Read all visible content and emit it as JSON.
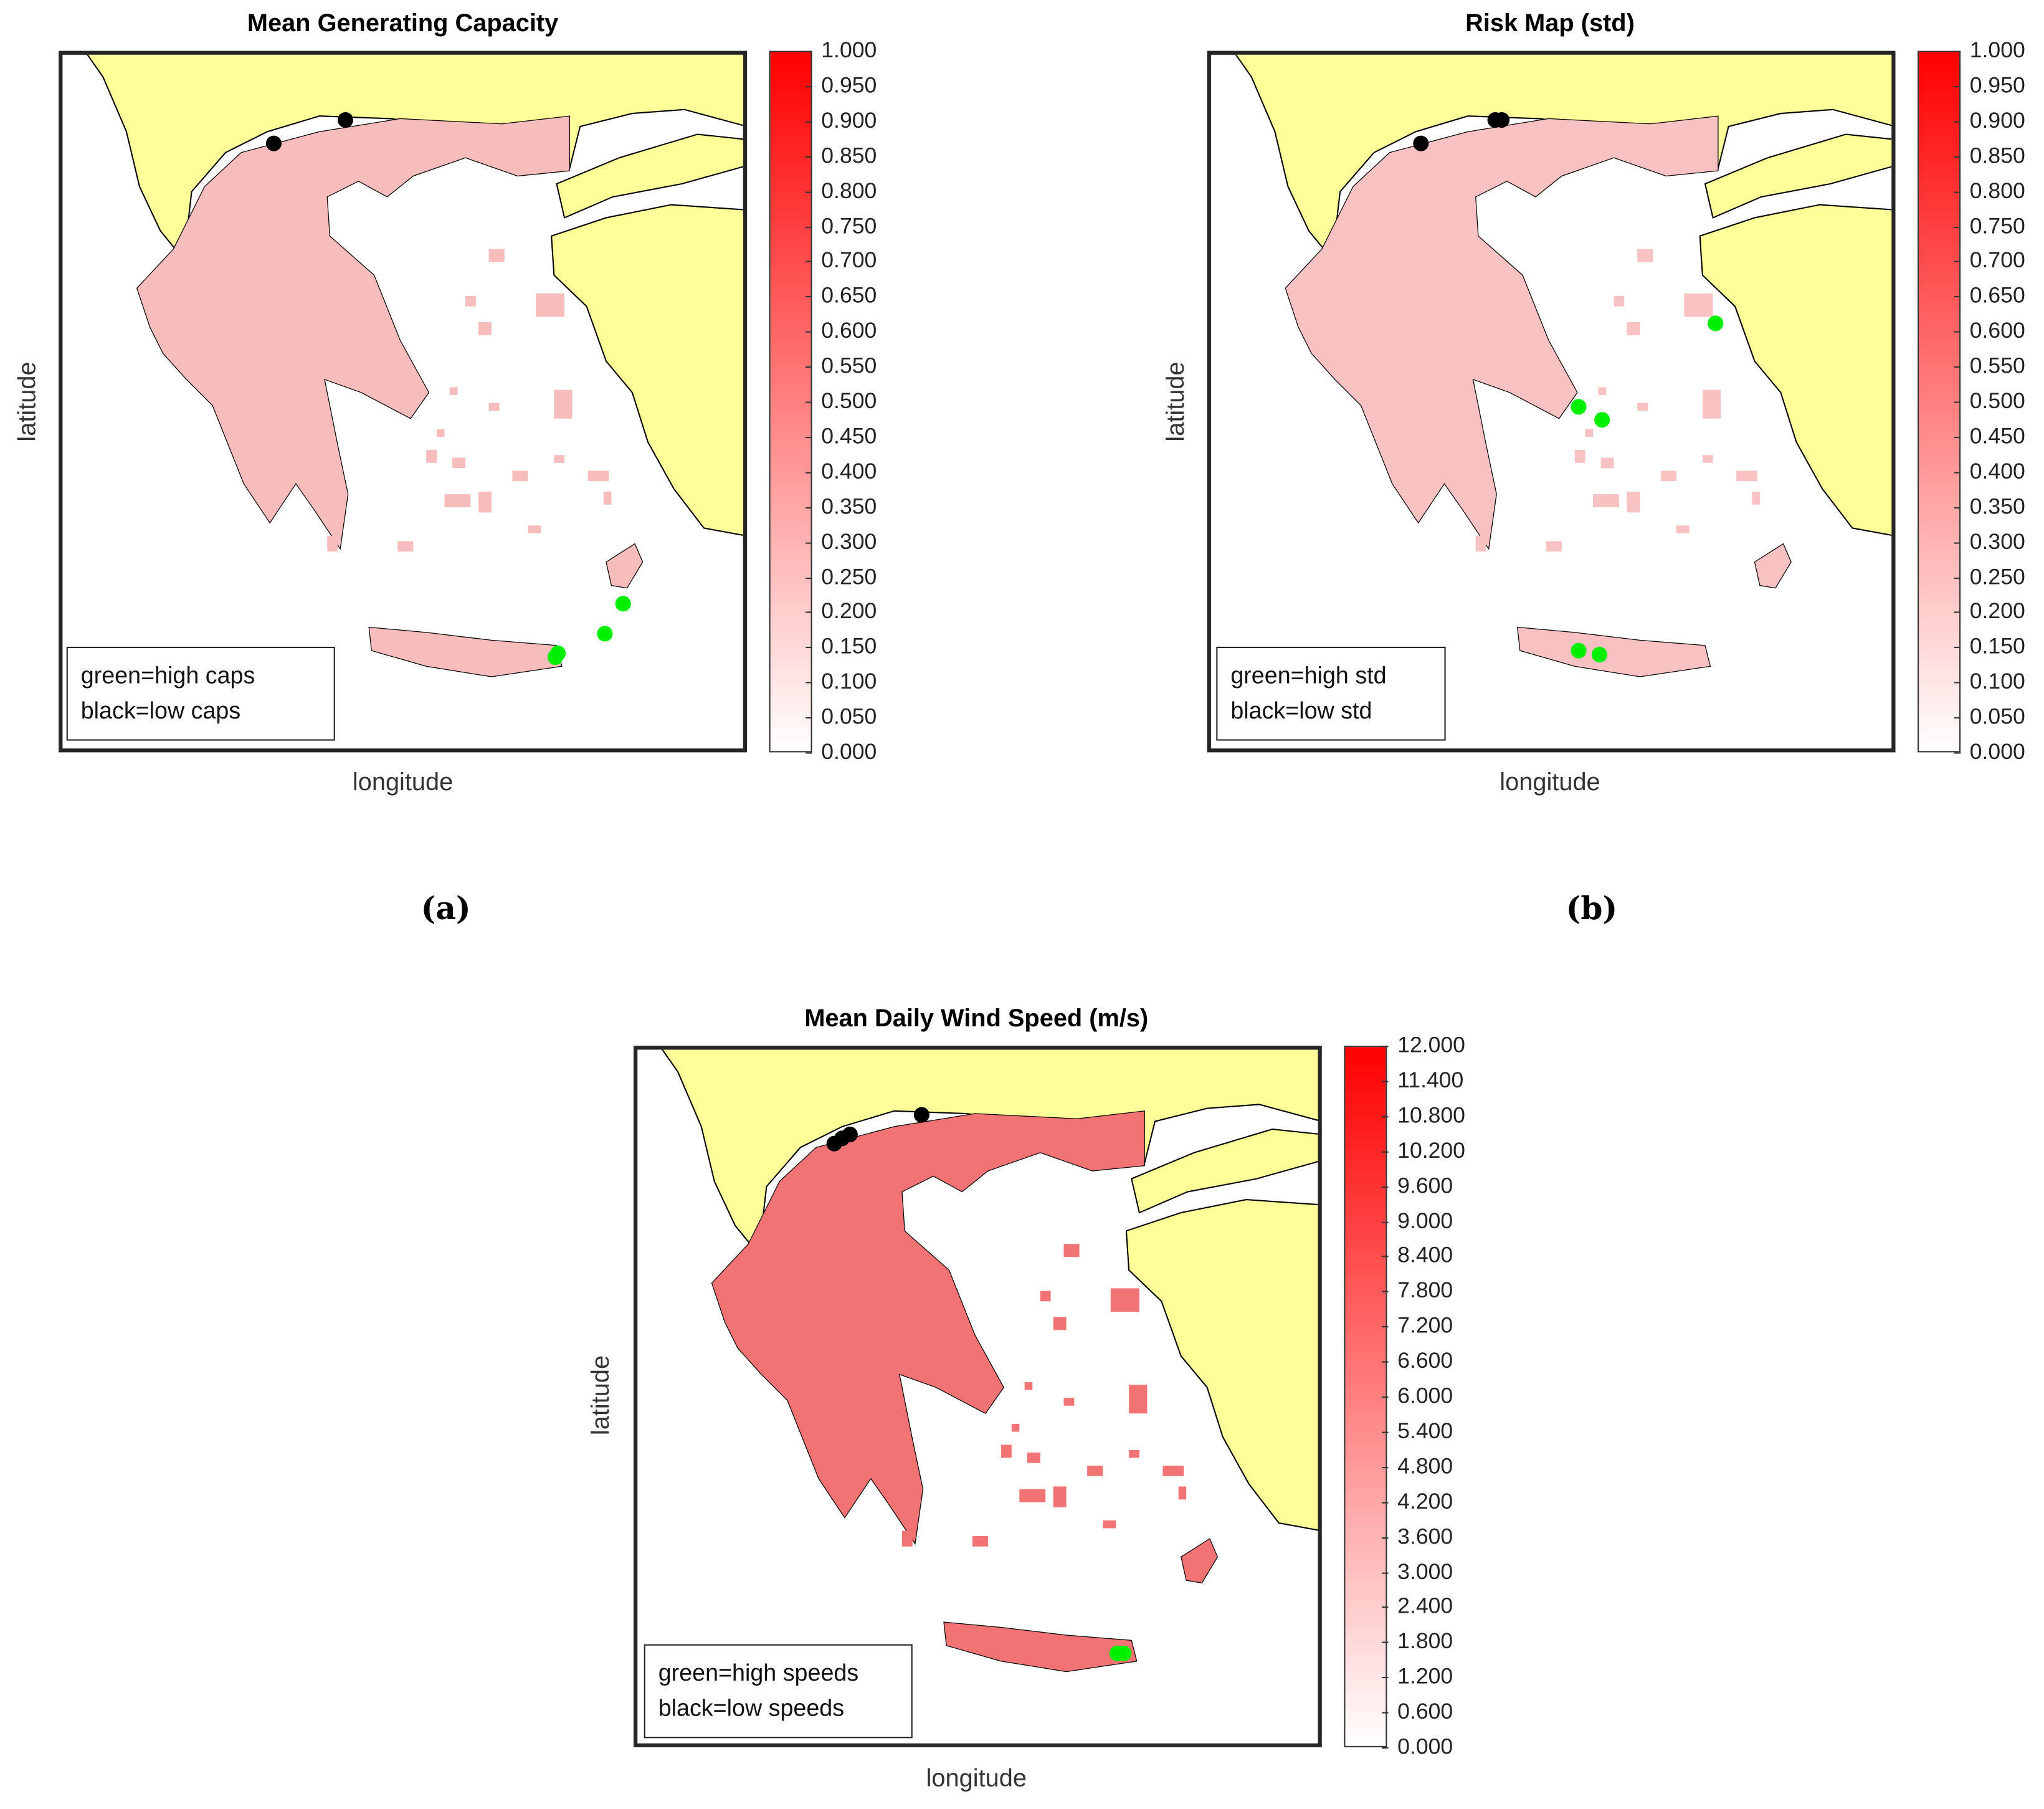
{
  "chart_data": [
    {
      "type": "heatmap",
      "title": "Mean Generating Capacity",
      "xlabel": "longitude",
      "ylabel": "latitude",
      "colorbar": {
        "min": 0,
        "max": 1,
        "colors": [
          "#ffffff",
          "#ff0000"
        ],
        "ticks": [
          "1.000",
          "0.950",
          "0.900",
          "0.850",
          "0.800",
          "0.750",
          "0.700",
          "0.650",
          "0.600",
          "0.550",
          "0.500",
          "0.450",
          "0.400",
          "0.350",
          "0.300",
          "0.250",
          "0.200",
          "0.150",
          "0.100",
          "0.050",
          "0.000"
        ]
      },
      "legend": [
        "green=high caps",
        "black=low caps"
      ],
      "caption": "(a)",
      "map_fill": "#f7bcbc",
      "land_color": "#ffff99"
    },
    {
      "type": "heatmap",
      "title": "Risk Map (std)",
      "xlabel": "longitude",
      "ylabel": "latitude",
      "colorbar": {
        "min": 0,
        "max": 1,
        "colors": [
          "#ffffff",
          "#ff0000"
        ],
        "ticks": [
          "1.000",
          "0.950",
          "0.900",
          "0.850",
          "0.800",
          "0.750",
          "0.700",
          "0.650",
          "0.600",
          "0.550",
          "0.500",
          "0.450",
          "0.400",
          "0.350",
          "0.300",
          "0.250",
          "0.200",
          "0.150",
          "0.100",
          "0.050",
          "0.000"
        ]
      },
      "legend": [
        "green=high std",
        "black=low std"
      ],
      "caption": "(b)",
      "map_fill": "#f8c2c2",
      "land_color": "#ffff99"
    },
    {
      "type": "heatmap",
      "title": "Mean Daily Wind Speed (m/s)",
      "xlabel": "longitude",
      "ylabel": "latitude",
      "colorbar": {
        "min": 0,
        "max": 12,
        "colors": [
          "#ffffff",
          "#ff0000"
        ],
        "ticks": [
          "12.000",
          "11.400",
          "10.800",
          "10.200",
          "9.600",
          "9.000",
          "8.400",
          "7.800",
          "7.200",
          "6.600",
          "6.000",
          "5.400",
          "4.800",
          "4.200",
          "3.600",
          "3.000",
          "2.400",
          "1.800",
          "1.200",
          "0.600",
          "0.000"
        ]
      },
      "legend": [
        "green=high speeds",
        "black=low speeds"
      ],
      "caption": "",
      "map_fill": "#f27373",
      "land_color": "#ffff99"
    }
  ],
  "marker_colors": {
    "high": "#00ee00",
    "low": "#000000"
  }
}
